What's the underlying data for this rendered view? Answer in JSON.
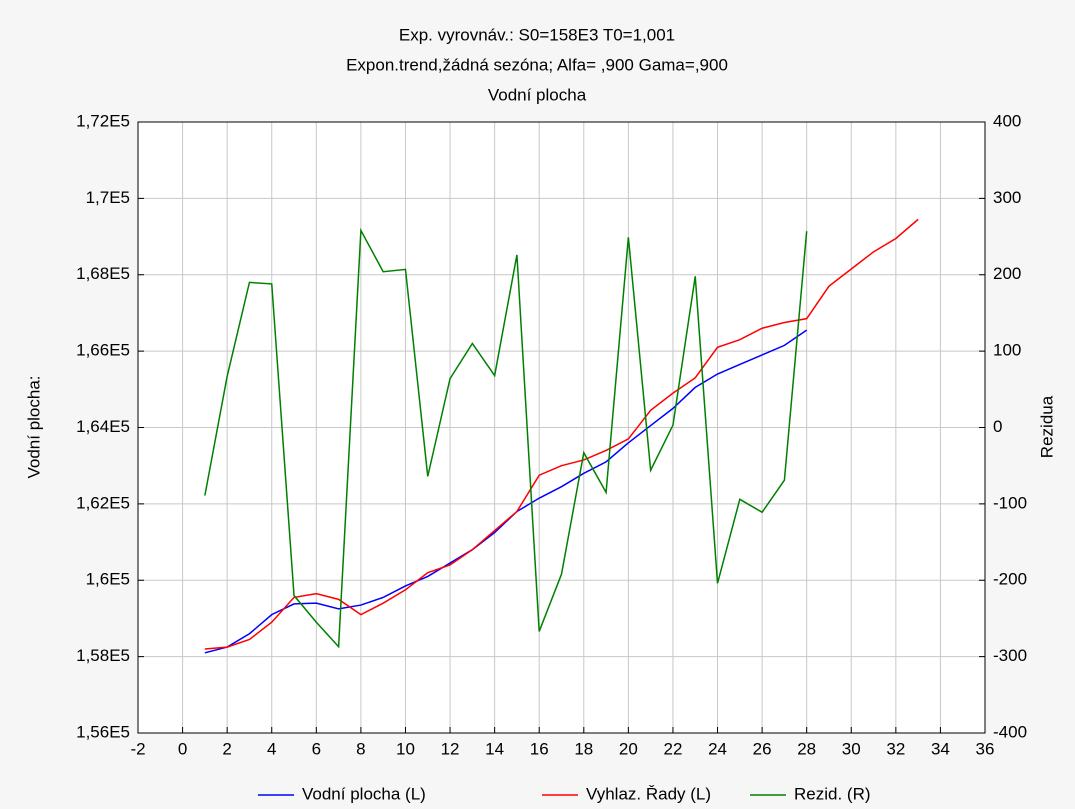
{
  "chart_data": {
    "type": "line",
    "title": "Exp. vyrovnáv.:  S0=158E3 T0=1,001",
    "subtitle": "Expon.trend,žádná sezóna; Alfa=  ,900 Gama=,900",
    "subtitle2": "Vodní plocha",
    "y_label": "Vodní plocha:",
    "y2_label": "Rezidua",
    "grid": true,
    "legend": "bottom",
    "x": [
      1,
      2,
      3,
      4,
      5,
      6,
      7,
      8,
      9,
      10,
      11,
      12,
      13,
      14,
      15,
      16,
      17,
      18,
      19,
      20,
      21,
      22,
      23,
      24,
      25,
      26,
      27,
      28,
      29,
      30,
      31,
      32,
      33
    ],
    "xlim": [
      -2,
      36
    ],
    "xticks": [
      -2,
      0,
      2,
      4,
      6,
      8,
      10,
      12,
      14,
      16,
      18,
      20,
      22,
      24,
      26,
      28,
      30,
      32,
      34,
      36
    ],
    "ylim": [
      156000,
      172000
    ],
    "yticks": [
      {
        "value": 156000,
        "label": "1,56E5"
      },
      {
        "value": 158000,
        "label": "1,58E5"
      },
      {
        "value": 160000,
        "label": "1,6E5"
      },
      {
        "value": 162000,
        "label": "1,62E5"
      },
      {
        "value": 164000,
        "label": "1,64E5"
      },
      {
        "value": 166000,
        "label": "1,66E5"
      },
      {
        "value": 168000,
        "label": "1,68E5"
      },
      {
        "value": 170000,
        "label": "1,7E5"
      },
      {
        "value": 172000,
        "label": "1,72E5"
      }
    ],
    "y2lim": [
      -400,
      400
    ],
    "y2ticks": [
      -400,
      -300,
      -200,
      -100,
      0,
      100,
      200,
      300,
      400
    ],
    "series": [
      {
        "name": "Vodní plocha (L)",
        "color": "#0000ff",
        "values": [
          158100,
          158250,
          158600,
          159100,
          159380,
          159400,
          159250,
          159350,
          159550,
          159850,
          160100,
          160450,
          160800,
          161250,
          161800,
          162150,
          162450,
          162800,
          163100,
          163600,
          164050,
          164500,
          165050,
          165400,
          165650,
          165900,
          166150,
          166550,
          null,
          null,
          null,
          null,
          null
        ]
      },
      {
        "name": "Vyhlaz. Řady (L)",
        "color": "#ff0000",
        "values": [
          158200,
          158250,
          158450,
          158900,
          159550,
          159650,
          159500,
          159100,
          159400,
          159750,
          160200,
          160400,
          160800,
          161300,
          161800,
          162750,
          163000,
          163150,
          163400,
          163700,
          164450,
          164900,
          165300,
          166100,
          166300,
          166600,
          166750,
          166850,
          167700,
          168150,
          168600,
          168950,
          169450
        ]
      },
      {
        "name": "Rezid. (R)",
        "color": "#008000",
        "axis": "y2",
        "values": [
          -89,
          67,
          190,
          188,
          -220,
          -255,
          -287,
          258,
          204,
          207,
          -64,
          64,
          110,
          68,
          226,
          -267,
          -192,
          -33,
          -85,
          249,
          -56,
          3,
          198,
          -204,
          -94,
          -111,
          -69,
          257,
          null,
          null,
          null,
          null,
          null
        ]
      }
    ]
  }
}
